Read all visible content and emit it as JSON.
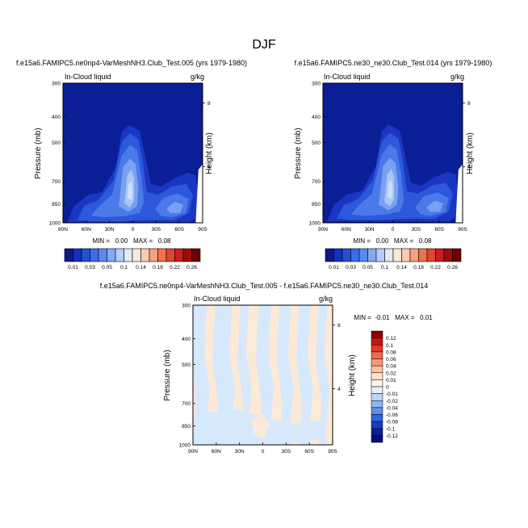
{
  "figure_title": "DJF",
  "chart_data": [
    {
      "type": "contour",
      "title": "f.e15a6.FAMIPC5.ne0np4-VarMeshNH3.Club_Test.005 (yrs 1979-1980)",
      "left_label": "In-Cloud liquid",
      "units": "g/kg",
      "ylabel": "Pressure (mb)",
      "ylabel_right": "Height (km)",
      "x_ticks": [
        "90N",
        "60N",
        "30N",
        "0",
        "30S",
        "60S",
        "90S"
      ],
      "y_ticks": [
        "300",
        "400",
        "500",
        "700",
        "850",
        "1000"
      ],
      "y_ticks_right": [
        "8",
        "4"
      ],
      "stats": "MIN =   0.00   MAX =   0.08",
      "min": 0.0,
      "max": 0.08
    },
    {
      "type": "contour",
      "title": "f.e15a6.FAMIPC5.ne30_ne30.Club_Test.014 (yrs 1979-1980)",
      "left_label": "In-Cloud liquid",
      "units": "g/kg",
      "ylabel": "Pressure (mb)",
      "ylabel_right": "Height (km)",
      "x_ticks": [
        "90N",
        "60N",
        "30N",
        "0",
        "30S",
        "60S",
        "90S"
      ],
      "y_ticks": [
        "300",
        "400",
        "500",
        "700",
        "850",
        "1000"
      ],
      "y_ticks_right": [
        "8",
        "4"
      ],
      "stats": "MIN =   0.00   MAX =   0.08",
      "min": 0.0,
      "max": 0.08
    },
    {
      "type": "contour",
      "title": "f.e15a6.FAMIPC5.ne0np4-VarMeshNH3.Club_Test.005 - f.e15a6.FAMIPC5.ne30_ne30.Club_Test.014",
      "left_label": "In-Cloud liquid",
      "units": "g/kg",
      "ylabel": "Pressure (mb)",
      "ylabel_right": "Height (km)",
      "x_ticks": [
        "90N",
        "60N",
        "30N",
        "0",
        "30S",
        "60S",
        "90S"
      ],
      "y_ticks": [
        "300",
        "400",
        "500",
        "700",
        "850",
        "1000"
      ],
      "y_ticks_right": [
        "8",
        "4"
      ],
      "stats": "MIN =  -0.01   MAX =   0.01",
      "min": -0.01,
      "max": 0.01
    }
  ],
  "colorbar_top": {
    "labels": [
      "0.01",
      "0.03",
      "0.05",
      "0.1",
      "0.14",
      "0.18",
      "0.22",
      "0.26"
    ],
    "colors": [
      "#0a1a8c",
      "#1630b8",
      "#2250d8",
      "#3a6ee6",
      "#5a8af0",
      "#85a8f5",
      "#b5cdf8",
      "#dfeafc",
      "#fde8d8",
      "#fccbb0",
      "#f8a080",
      "#f07050",
      "#e24430",
      "#c81e1e",
      "#9c0c0c",
      "#6e0000"
    ]
  },
  "colorbar_diff": {
    "labels": [
      "0.12",
      "0.1",
      "0.08",
      "0.06",
      "0.04",
      "0.02",
      "0.01",
      "0",
      "-0.01",
      "-0.02",
      "-0.04",
      "-0.06",
      "-0.08",
      "-0.1",
      "-0.12"
    ],
    "colors": [
      "#8a0000",
      "#c01616",
      "#e23a2a",
      "#f06a4a",
      "#f79a78",
      "#fbc0a0",
      "#fde2cc",
      "#fff2e6",
      "#e4efff",
      "#bcd6fb",
      "#8fb4f5",
      "#5c8cee",
      "#3262e0",
      "#1a3cc4",
      "#0c1f98",
      "#06107a"
    ]
  },
  "palette": {
    "bg": "#0a1e96",
    "lvl1": "#1a36c2",
    "lvl2": "#2c58dc",
    "lvl3": "#4a7ae8",
    "lvl4": "#7aa0f2",
    "lvl5": "#aac6f7",
    "lvl6": "#d0e0fb",
    "diff_pos": "#fde9d8",
    "diff_neg": "#d6e8fb"
  }
}
